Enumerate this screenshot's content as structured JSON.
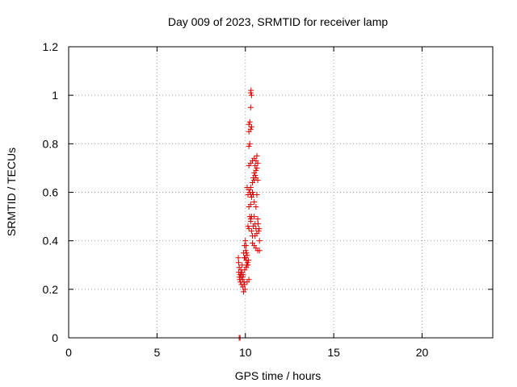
{
  "chart_data": {
    "type": "scatter",
    "title": "Day 009 of 2023, SRMTID for receiver lamp",
    "xlabel": "GPS time / hours",
    "ylabel": "SRMTID / TECUs",
    "xlim": [
      0,
      24
    ],
    "ylim": [
      0,
      1.2
    ],
    "xticks": [
      0,
      5,
      10,
      15,
      20
    ],
    "xtick_labels": [
      "0",
      "5",
      "10",
      "15",
      "20"
    ],
    "yticks": [
      0,
      0.2,
      0.4,
      0.6,
      0.8,
      1,
      1.2
    ],
    "ytick_labels": [
      "0",
      "0.2",
      "0.4",
      "0.6",
      "0.8",
      "1",
      "1.2"
    ],
    "grid": true,
    "marker": "+",
    "color": "#dd0000",
    "series": [
      {
        "name": "SRMTID",
        "points": [
          [
            9.65,
            0.0
          ],
          [
            9.7,
            0.0
          ],
          [
            9.6,
            0.33
          ],
          [
            9.62,
            0.31
          ],
          [
            9.65,
            0.29
          ],
          [
            9.63,
            0.27
          ],
          [
            9.66,
            0.25
          ],
          [
            9.68,
            0.24
          ],
          [
            9.7,
            0.26
          ],
          [
            9.72,
            0.23
          ],
          [
            9.74,
            0.28
          ],
          [
            9.76,
            0.25
          ],
          [
            9.78,
            0.22
          ],
          [
            9.8,
            0.27
          ],
          [
            9.82,
            0.3
          ],
          [
            9.84,
            0.24
          ],
          [
            9.86,
            0.21
          ],
          [
            9.88,
            0.26
          ],
          [
            9.9,
            0.19
          ],
          [
            9.92,
            0.23
          ],
          [
            9.94,
            0.33
          ],
          [
            9.96,
            0.28
          ],
          [
            9.75,
            0.26
          ],
          [
            9.85,
            0.25
          ],
          [
            9.95,
            0.22
          ],
          [
            9.98,
            0.2
          ],
          [
            9.9,
            0.35
          ],
          [
            9.95,
            0.38
          ],
          [
            10.0,
            0.4
          ],
          [
            10.02,
            0.36
          ],
          [
            10.05,
            0.32
          ],
          [
            10.08,
            0.3
          ],
          [
            10.1,
            0.34
          ],
          [
            10.12,
            0.31
          ],
          [
            10.0,
            0.33
          ],
          [
            10.05,
            0.29
          ],
          [
            10.15,
            0.3
          ],
          [
            10.18,
            0.32
          ],
          [
            10.1,
            0.23
          ],
          [
            10.2,
            0.24
          ],
          [
            10.04,
            0.38
          ],
          [
            10.06,
            0.35
          ],
          [
            10.15,
            0.46
          ],
          [
            10.2,
            0.45
          ],
          [
            10.25,
            0.5
          ],
          [
            10.3,
            0.48
          ],
          [
            10.35,
            0.44
          ],
          [
            10.4,
            0.42
          ],
          [
            10.45,
            0.46
          ],
          [
            10.5,
            0.5
          ],
          [
            10.55,
            0.47
          ],
          [
            10.6,
            0.45
          ],
          [
            10.65,
            0.43
          ],
          [
            10.7,
            0.49
          ],
          [
            10.72,
            0.47
          ],
          [
            10.75,
            0.44
          ],
          [
            10.78,
            0.45
          ],
          [
            10.8,
            0.4
          ],
          [
            10.6,
            0.37
          ],
          [
            10.7,
            0.36
          ],
          [
            10.8,
            0.36
          ],
          [
            10.4,
            0.39
          ],
          [
            10.5,
            0.38
          ],
          [
            10.55,
            0.42
          ],
          [
            10.3,
            0.49
          ],
          [
            10.35,
            0.5
          ],
          [
            10.2,
            0.54
          ],
          [
            10.3,
            0.55
          ],
          [
            10.5,
            0.56
          ],
          [
            10.6,
            0.54
          ],
          [
            10.15,
            0.59
          ],
          [
            10.2,
            0.61
          ],
          [
            10.25,
            0.6
          ],
          [
            10.3,
            0.59
          ],
          [
            10.35,
            0.58
          ],
          [
            10.4,
            0.6
          ],
          [
            10.45,
            0.59
          ],
          [
            10.65,
            0.59
          ],
          [
            10.1,
            0.62
          ],
          [
            10.3,
            0.62
          ],
          [
            10.4,
            0.64
          ],
          [
            10.45,
            0.66
          ],
          [
            10.5,
            0.68
          ],
          [
            10.55,
            0.67
          ],
          [
            10.6,
            0.69
          ],
          [
            10.65,
            0.7
          ],
          [
            10.5,
            0.65
          ],
          [
            10.6,
            0.66
          ],
          [
            10.7,
            0.65
          ],
          [
            10.2,
            0.71
          ],
          [
            10.3,
            0.72
          ],
          [
            10.4,
            0.73
          ],
          [
            10.5,
            0.74
          ],
          [
            10.6,
            0.73
          ],
          [
            10.65,
            0.75
          ],
          [
            10.7,
            0.72
          ],
          [
            10.55,
            0.71
          ],
          [
            10.2,
            0.79
          ],
          [
            10.25,
            0.8
          ],
          [
            10.2,
            0.85
          ],
          [
            10.3,
            0.86
          ],
          [
            10.35,
            0.87
          ],
          [
            10.25,
            0.89
          ],
          [
            10.2,
            0.88
          ],
          [
            10.3,
            0.95
          ],
          [
            10.35,
            1.0
          ],
          [
            10.3,
            1.01
          ],
          [
            10.32,
            1.02
          ]
        ]
      }
    ]
  }
}
